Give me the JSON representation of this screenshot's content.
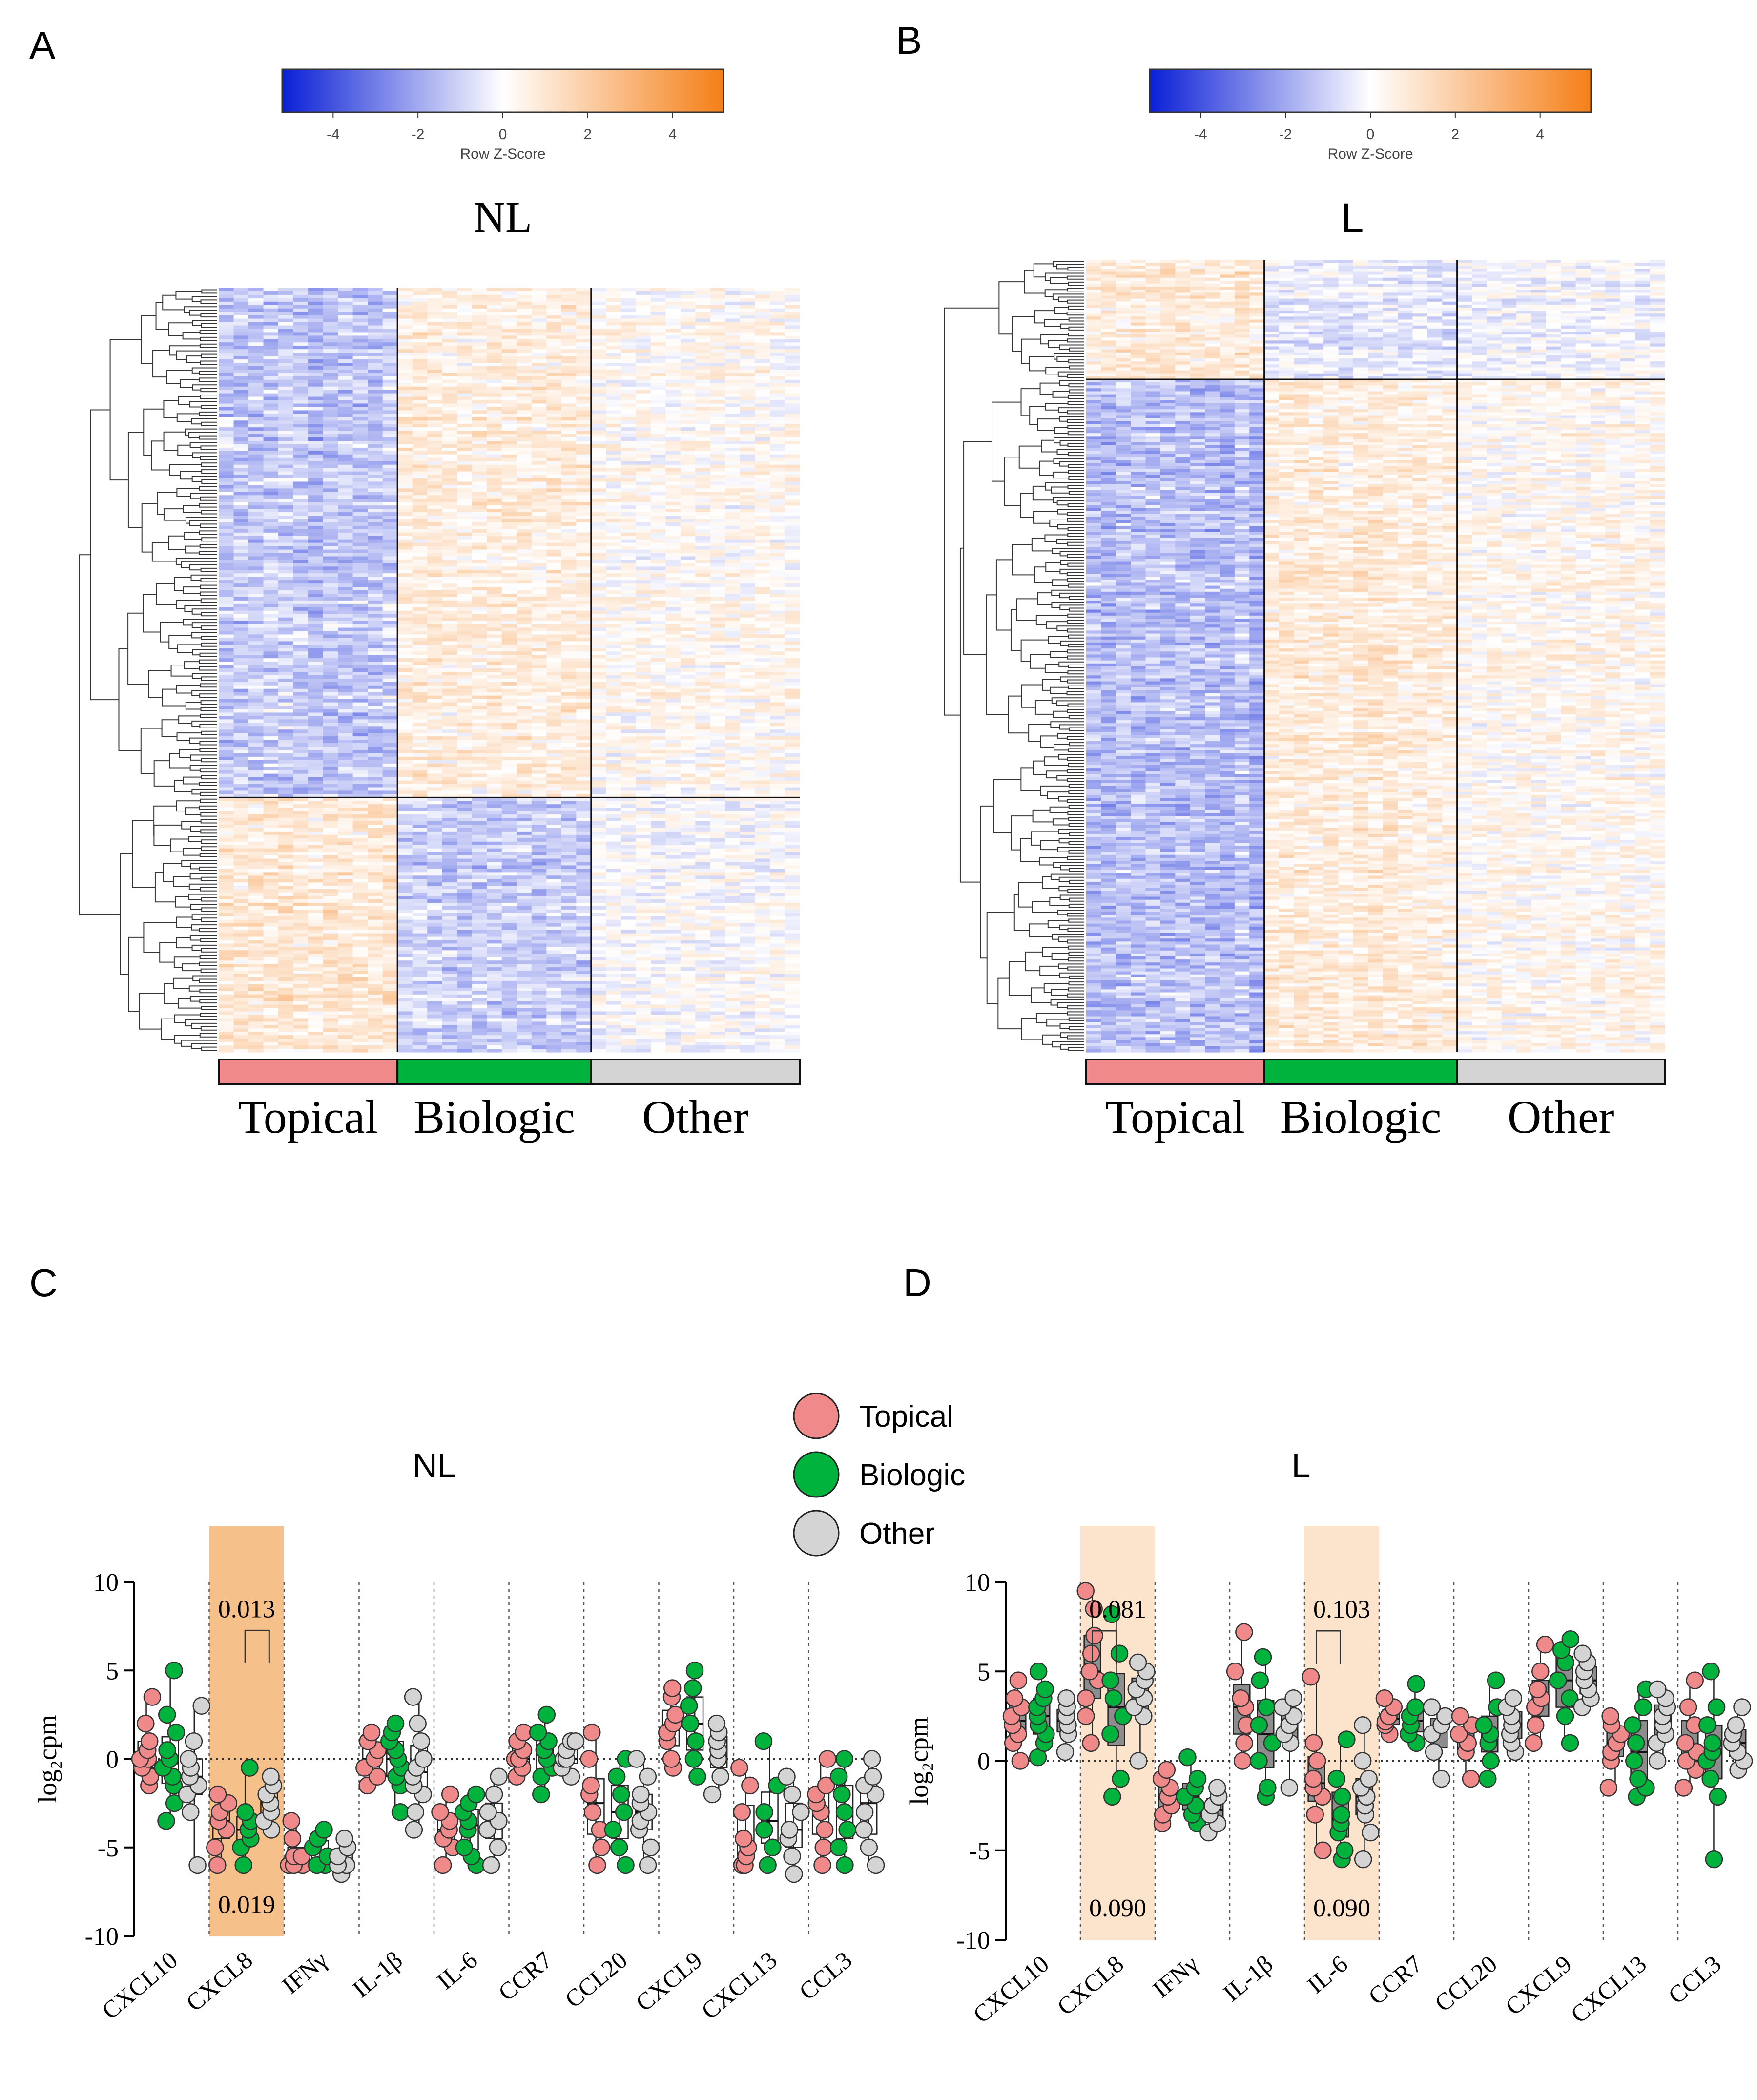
{
  "panels": {
    "A": {
      "letter": "A",
      "title": "NL"
    },
    "B": {
      "letter": "B",
      "title": "L"
    },
    "C": {
      "letter": "C",
      "title": "NL"
    },
    "D": {
      "letter": "D",
      "title": "L"
    }
  },
  "colorkey": {
    "label": "Row Z-Score",
    "ticks": [
      -4,
      -2,
      0,
      2,
      4
    ],
    "min": -5.2,
    "max": 5.2,
    "colors": {
      "low": "#0a1fd6",
      "mid": "#ffffff",
      "high": "#f57f17"
    }
  },
  "groups": [
    {
      "name": "Topical",
      "color": "#f08a8a"
    },
    {
      "name": "Biologic",
      "color": "#00b33c"
    },
    {
      "name": "Other",
      "color": "#d4d4d4"
    }
  ],
  "legend": [
    {
      "label": "Topical",
      "color": "#f08a8a"
    },
    {
      "label": "Biologic",
      "color": "#00b33c"
    },
    {
      "label": "Other",
      "color": "#d4d4d4"
    }
  ],
  "chart_data": [
    {
      "type": "heatmap",
      "panel": "A",
      "title": "NL",
      "columns": [
        {
          "group": "Topical",
          "n": 12
        },
        {
          "group": "Biologic",
          "n": 13
        },
        {
          "group": "Other",
          "n": 14
        }
      ],
      "row_clusters": [
        {
          "n_rows": 150,
          "pattern": {
            "Topical": -1.3,
            "Biologic": 0.7,
            "Other": 0.2
          }
        },
        {
          "n_rows": 75,
          "pattern": {
            "Topical": 0.9,
            "Biologic": -1.0,
            "Other": 0.0
          }
        }
      ]
    },
    {
      "type": "heatmap",
      "panel": "B",
      "title": "L",
      "columns": [
        {
          "group": "Topical",
          "n": 12
        },
        {
          "group": "Biologic",
          "n": 13
        },
        {
          "group": "Other",
          "n": 14
        }
      ],
      "row_clusters": [
        {
          "n_rows": 40,
          "pattern": {
            "Topical": 0.9,
            "Biologic": -0.5,
            "Other": -0.2
          }
        },
        {
          "n_rows": 225,
          "pattern": {
            "Topical": -1.3,
            "Biologic": 0.7,
            "Other": 0.3
          }
        }
      ]
    },
    {
      "type": "box",
      "panel": "C",
      "title": "NL",
      "ylabel": "log₂cpm",
      "ylim": [
        -10,
        10
      ],
      "yticks": [
        -10,
        -5,
        0,
        5,
        10
      ],
      "categories": [
        "CXCL10",
        "CXCL8",
        "IFNγ",
        "IL-1β",
        "IL-6",
        "CCR7",
        "CCL20",
        "CXCL9",
        "CXCL13",
        "CCL3"
      ],
      "highlight": [
        {
          "category": "CXCL8",
          "color": "#f6c08a"
        }
      ],
      "annotations": [
        {
          "category": "CXCL8",
          "text": "0.013",
          "y": 8.5,
          "bracket": [
            "Biologic",
            "Other"
          ]
        },
        {
          "category": "CXCL8",
          "text": "0.019",
          "y": -8.2
        }
      ],
      "series": [
        {
          "name": "Topical",
          "values": [
            [
              -1.5,
              -1,
              -0.5,
              0,
              0,
              0.5,
              1,
              2,
              3.5
            ],
            [
              -6,
              -5,
              -4,
              -3.5,
              -3,
              -2.5,
              -2
            ],
            [
              -6,
              -6,
              -6,
              -5.5,
              -5.5,
              -4.5,
              -3.5
            ],
            [
              -1.5,
              -1,
              -0.5,
              0,
              0.5,
              1,
              1.5
            ],
            [
              -6,
              -5,
              -4.5,
              -4,
              -3.5,
              -3,
              -2
            ],
            [
              -1,
              -0.5,
              0,
              0,
              0.5,
              1,
              1.5
            ],
            [
              -6,
              -5,
              -4,
              -3,
              -2,
              -1.5,
              0,
              1.5
            ],
            [
              -0.5,
              0,
              1,
              1.5,
              2,
              2.5,
              3.5,
              4
            ],
            [
              -6,
              -6,
              -5.5,
              -5,
              -4.5,
              -3,
              -1.5,
              -0.5
            ],
            [
              -6,
              -5,
              -4,
              -3,
              -2.5,
              -2,
              -1.5,
              0
            ]
          ]
        },
        {
          "name": "Biologic",
          "values": [
            [
              -3.5,
              -2.5,
              -1.5,
              -1,
              -0.5,
              0,
              0.5,
              1.5,
              2.5,
              5
            ],
            [
              -6,
              -5,
              -4.5,
              -4,
              -3.5,
              -3,
              -0.5
            ],
            [
              -6,
              -6,
              -5.5,
              -5,
              -4.5,
              -4
            ],
            [
              -3,
              -1.5,
              -1,
              -0.5,
              0,
              0.5,
              1,
              1.5,
              2
            ],
            [
              -6,
              -5.5,
              -5,
              -4,
              -3.5,
              -3,
              -2.5,
              -2
            ],
            [
              -2,
              -1,
              -0.5,
              0,
              0.5,
              1,
              1.5,
              2.5
            ],
            [
              -6,
              -5,
              -4,
              -3,
              -2,
              -1,
              0
            ],
            [
              -1,
              0,
              1,
              2,
              3,
              4,
              5
            ],
            [
              -6,
              -5,
              -4,
              -3,
              -1.5,
              1
            ],
            [
              -6,
              -5,
              -4,
              -3,
              -2,
              -1,
              0
            ]
          ]
        },
        {
          "name": "Other",
          "values": [
            [
              -6,
              -3,
              -2,
              -1.5,
              -1,
              -0.5,
              0,
              1,
              3
            ],
            [
              -4,
              -3.5,
              -3,
              -2.5,
              -2,
              -1.5,
              -1
            ],
            [
              -6.5,
              -6,
              -6,
              -5.5,
              -5,
              -4.5
            ],
            [
              -4,
              -3,
              -2,
              -1.5,
              -1,
              -0.5,
              0,
              1,
              2,
              3.5
            ],
            [
              -6,
              -5,
              -4,
              -3.5,
              -3,
              -2,
              -1
            ],
            [
              -1,
              -0.5,
              0,
              0,
              0.5,
              1,
              1
            ],
            [
              -6,
              -5,
              -4,
              -3.5,
              -3,
              -2.5,
              -2,
              -1,
              0
            ],
            [
              -2,
              -1,
              0,
              0.5,
              1,
              1.5,
              2
            ],
            [
              -6.5,
              -5.5,
              -4.5,
              -4,
              -3,
              -2,
              -1
            ],
            [
              -6,
              -5,
              -4,
              -3,
              -2,
              -1.5,
              -1,
              0
            ]
          ]
        }
      ]
    },
    {
      "type": "box",
      "panel": "D",
      "title": "L",
      "ylabel": "log₂cpm",
      "ylim": [
        -10,
        10
      ],
      "yticks": [
        -10,
        -5,
        0,
        5,
        10
      ],
      "categories": [
        "CXCL10",
        "CXCL8",
        "IFNγ",
        "IL-1β",
        "IL-6",
        "CCR7",
        "CCL20",
        "CXCL9",
        "CXCL13",
        "CCL3"
      ],
      "highlight": [
        {
          "category": "CXCL8",
          "color": "#fbe3cc"
        },
        {
          "category": "IL-6",
          "color": "#fbe3cc"
        }
      ],
      "annotations": [
        {
          "category": "CXCL8",
          "text": "0.081",
          "y": 8.5,
          "bracket": [
            "Topical",
            "Biologic"
          ]
        },
        {
          "category": "CXCL8",
          "text": "0.090",
          "y": -8.2
        },
        {
          "category": "IL-6",
          "text": "0.103",
          "y": 8.5,
          "bracket": [
            "Topical",
            "Biologic"
          ]
        },
        {
          "category": "IL-6",
          "text": "0.090",
          "y": -8.2
        }
      ],
      "series": [
        {
          "name": "Topical",
          "values": [
            [
              0,
              1,
              1.5,
              2,
              2.5,
              3,
              3.5,
              4.5
            ],
            [
              1,
              2.5,
              3.5,
              4.5,
              5,
              6,
              7,
              8.5,
              9.5
            ],
            [
              -3.5,
              -3,
              -2.5,
              -2,
              -1.5,
              -1,
              -0.5
            ],
            [
              0,
              1,
              2,
              3,
              3.5,
              5,
              7.2
            ],
            [
              -5,
              -3,
              -2,
              -1.5,
              -1,
              0,
              1,
              4.7
            ],
            [
              1.5,
              2,
              2.2,
              2.5,
              3,
              3.5
            ],
            [
              -1,
              0.5,
              1,
              1.5,
              2,
              2.5
            ],
            [
              1,
              2,
              3,
              3.5,
              4,
              5,
              6.5
            ],
            [
              -1.5,
              0,
              0.5,
              1,
              1.5,
              2,
              2.5
            ],
            [
              -1.5,
              -0.5,
              0,
              0.5,
              1,
              2,
              3,
              4.5
            ]
          ]
        },
        {
          "name": "Biologic",
          "values": [
            [
              0.2,
              1,
              1.5,
              2,
              2.5,
              3,
              3.5,
              4,
              5
            ],
            [
              -2,
              -1,
              1.5,
              2.5,
              3.5,
              4.5,
              6,
              8.2
            ],
            [
              -3.5,
              -3,
              -2.5,
              -2,
              -1.5,
              -1,
              0.2
            ],
            [
              -2,
              -1.5,
              0,
              1,
              2,
              3,
              4.5,
              5.8
            ],
            [
              -5.5,
              -5,
              -4,
              -3.5,
              -3,
              -2,
              -1,
              1.2
            ],
            [
              1,
              1.5,
              2,
              2.5,
              3,
              4.3
            ],
            [
              -1,
              0,
              1,
              1.5,
              2,
              3,
              4.5
            ],
            [
              1,
              2.5,
              3.5,
              4.5,
              5.5,
              6.2,
              6.8
            ],
            [
              -2,
              -1.5,
              -1,
              0,
              1,
              2,
              3,
              4
            ],
            [
              -5.5,
              -2,
              -1,
              0,
              0.5,
              1,
              2,
              3,
              5
            ]
          ]
        },
        {
          "name": "Other",
          "values": [
            [
              0.5,
              1.5,
              2,
              2.5,
              3,
              3.5
            ],
            [
              0,
              2.5,
              3,
              3.5,
              4,
              4.5,
              5,
              5.5
            ],
            [
              -4,
              -3.5,
              -3,
              -2.5,
              -2,
              -1.5
            ],
            [
              -1.5,
              1,
              1.5,
              2,
              2.5,
              3,
              3.5
            ],
            [
              -5.5,
              -4,
              -3,
              -2.5,
              -2,
              -1.5,
              -1,
              0,
              2
            ],
            [
              -1,
              0.5,
              1.5,
              2,
              2.5,
              3
            ],
            [
              0.5,
              1,
              1.5,
              2,
              2.5,
              3,
              3.5
            ],
            [
              3,
              3.5,
              4,
              4.5,
              5,
              5.5,
              6
            ],
            [
              0,
              1,
              1.5,
              2,
              2.5,
              3,
              3.5,
              4
            ],
            [
              -0.5,
              0,
              0.5,
              1,
              1.5,
              2,
              3
            ]
          ]
        }
      ]
    }
  ]
}
